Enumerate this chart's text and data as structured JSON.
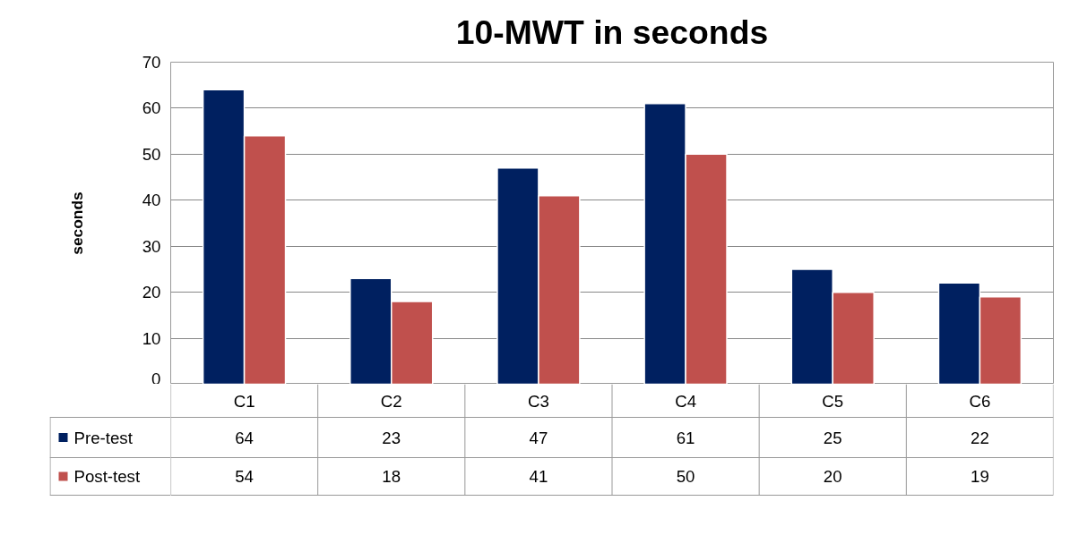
{
  "chart_data": {
    "type": "bar",
    "title": "10-MWT in seconds",
    "ylabel": "seconds",
    "categories": [
      "C1",
      "C2",
      "C3",
      "C4",
      "C5",
      "C6"
    ],
    "series": [
      {
        "name": "Pre-test",
        "color": "#002060",
        "values": [
          64,
          23,
          47,
          61,
          25,
          22
        ]
      },
      {
        "name": "Post-test",
        "color": "#c0504d",
        "values": [
          54,
          18,
          41,
          50,
          20,
          19
        ]
      }
    ],
    "ylim": [
      0,
      70
    ],
    "yticks": [
      0,
      10,
      20,
      30,
      40,
      50,
      60,
      70
    ],
    "grid": "y",
    "legend": "bottom",
    "data_labels": true
  }
}
